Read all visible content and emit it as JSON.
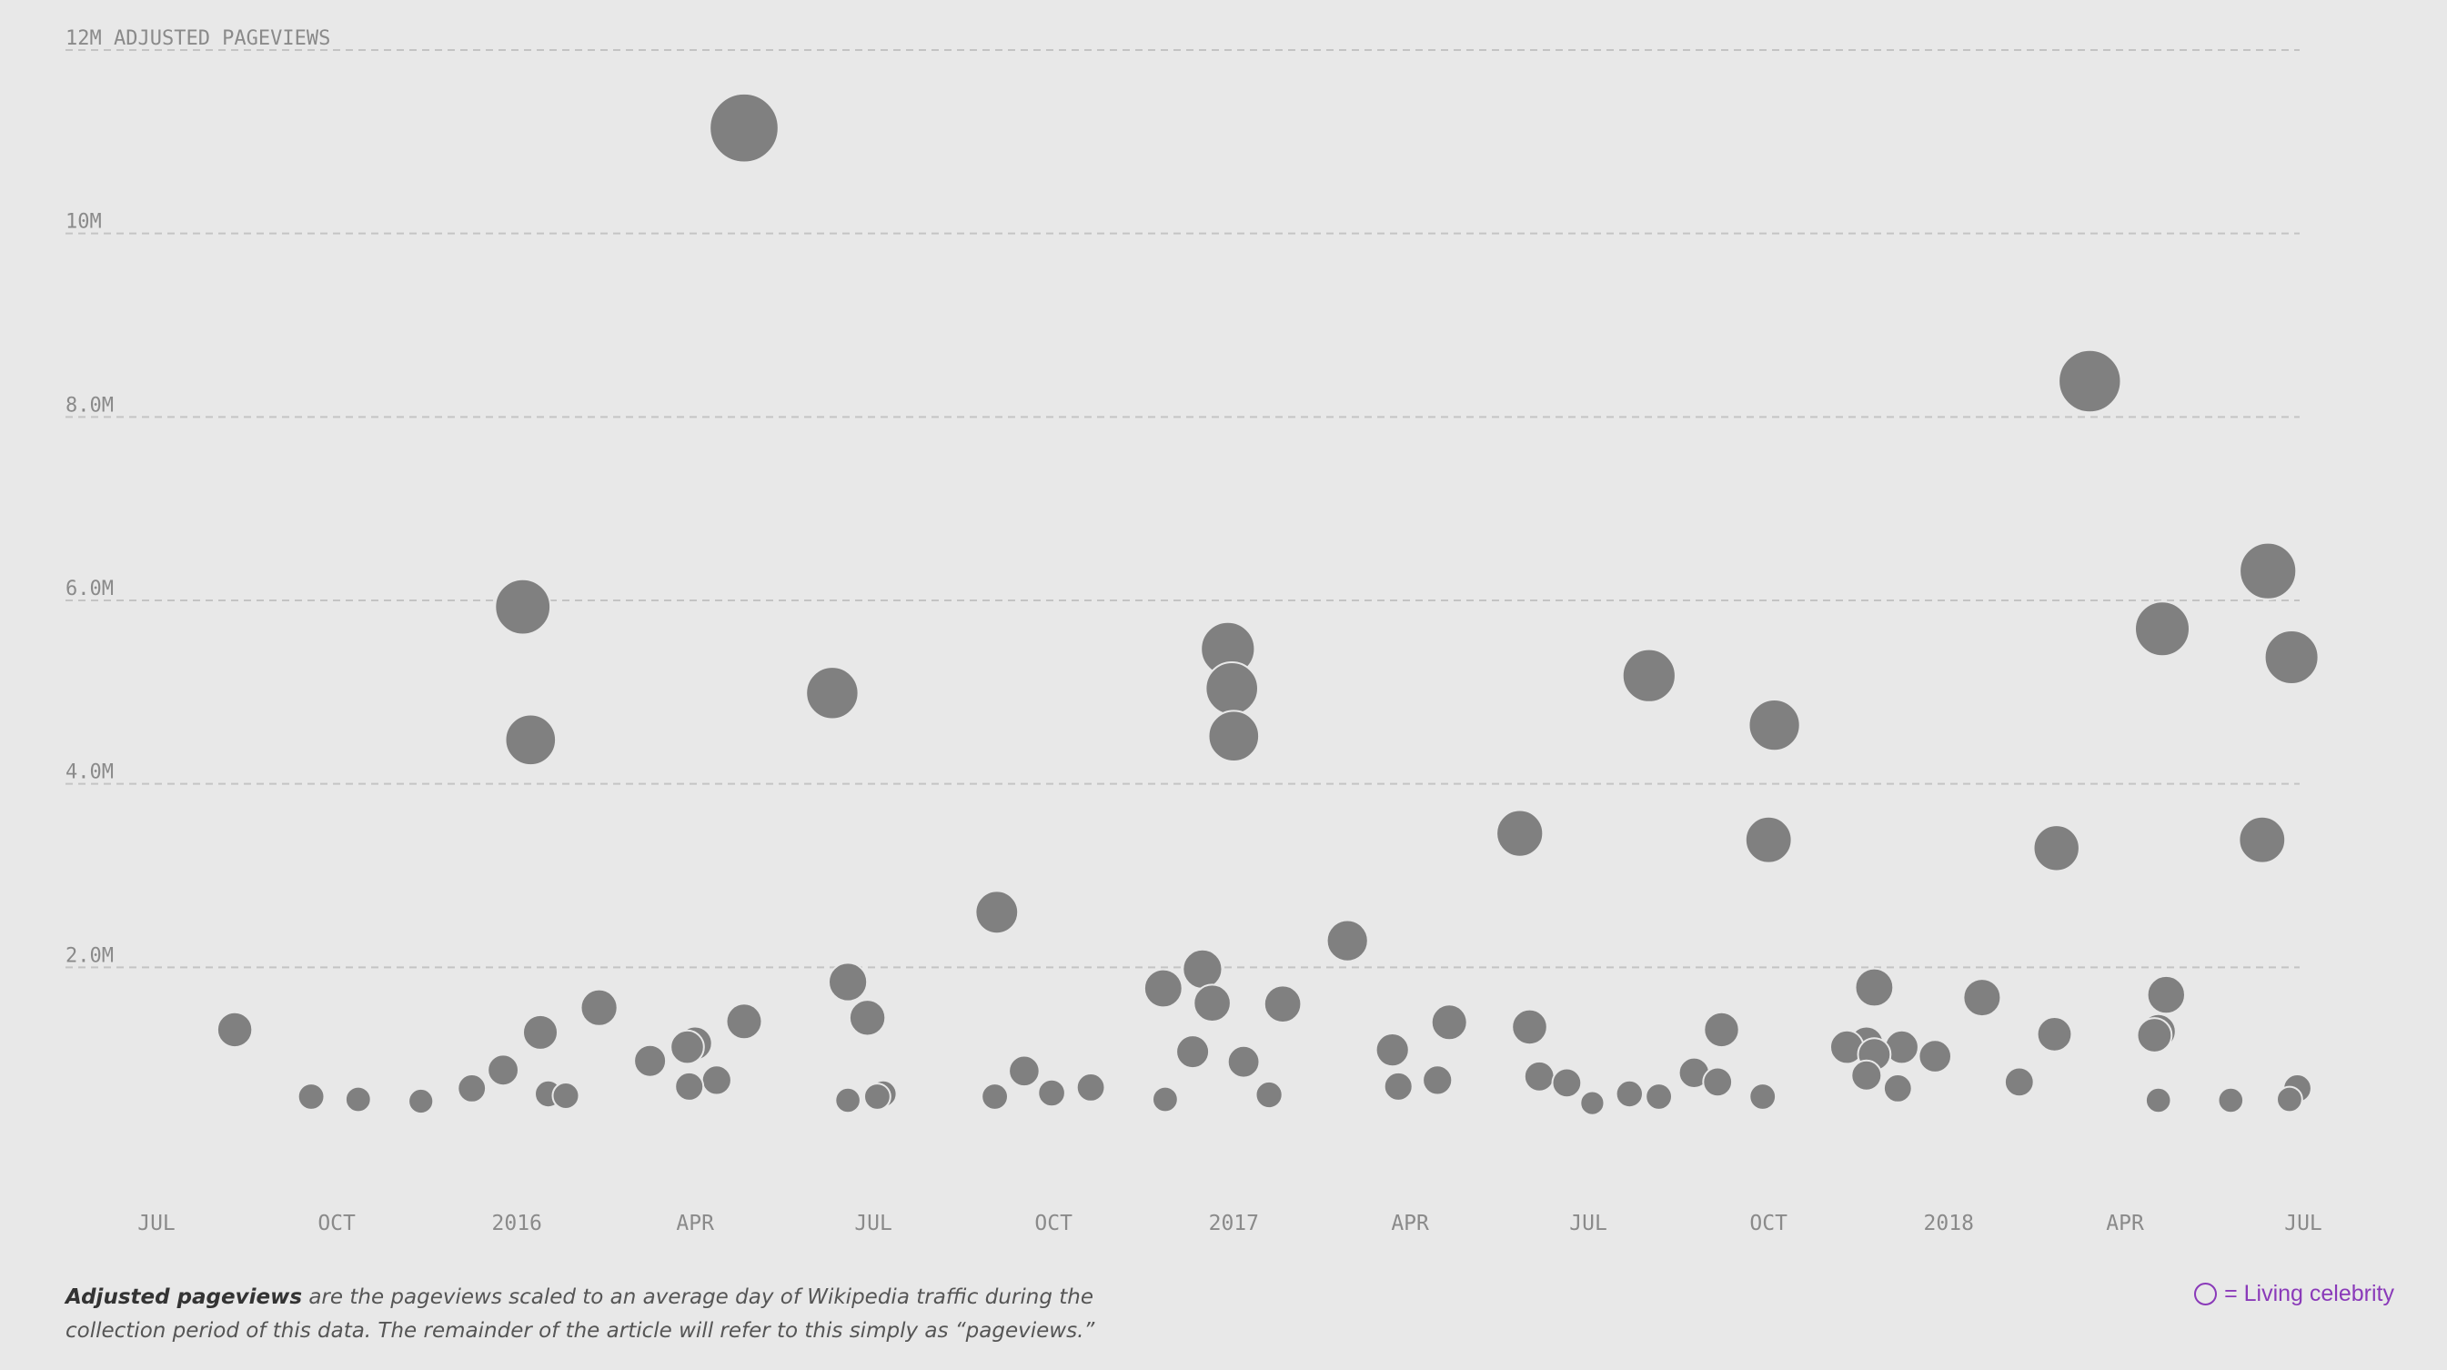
{
  "chart_data": {
    "type": "scatter",
    "x_axis": {
      "start": "2015-06-01",
      "end": "2018-06-30",
      "ticks": [
        {
          "label": "JUL",
          "date": "2015-07-01"
        },
        {
          "label": "OCT",
          "date": "2015-10-01"
        },
        {
          "label": "2016",
          "date": "2016-01-01"
        },
        {
          "label": "APR",
          "date": "2016-04-01"
        },
        {
          "label": "JUL",
          "date": "2016-07-01"
        },
        {
          "label": "OCT",
          "date": "2016-10-01"
        },
        {
          "label": "2017",
          "date": "2017-01-01"
        },
        {
          "label": "APR",
          "date": "2017-04-01"
        },
        {
          "label": "JUL",
          "date": "2017-07-01"
        },
        {
          "label": "OCT",
          "date": "2017-10-01"
        },
        {
          "label": "2018",
          "date": "2018-01-01"
        },
        {
          "label": "APR",
          "date": "2018-04-01"
        },
        {
          "label": "JUL",
          "date": "2018-07-01"
        }
      ]
    },
    "y_axis": {
      "min": 0,
      "max": 12000000,
      "ticks": [
        {
          "label": "2.0M",
          "value": 2000000
        },
        {
          "label": "4.0M",
          "value": 4000000
        },
        {
          "label": "6.0M",
          "value": 6000000
        },
        {
          "label": "8.0M",
          "value": 8000000
        },
        {
          "label": "10M",
          "value": 10000000
        },
        {
          "label": "12M ADJUSTED PAGEVIEWS",
          "value": 12000000
        }
      ]
    },
    "grid": true,
    "points": [
      {
        "date": "2015-08-10",
        "value": 1320000
      },
      {
        "date": "2015-09-18",
        "value": 590000
      },
      {
        "date": "2015-10-12",
        "value": 560000
      },
      {
        "date": "2015-11-13",
        "value": 540000
      },
      {
        "date": "2015-12-09",
        "value": 680000
      },
      {
        "date": "2015-12-25",
        "value": 880000
      },
      {
        "date": "2016-01-04",
        "value": 5930000
      },
      {
        "date": "2016-01-08",
        "value": 4480000
      },
      {
        "date": "2016-01-13",
        "value": 1290000
      },
      {
        "date": "2016-01-17",
        "value": 620000
      },
      {
        "date": "2016-01-26",
        "value": 600000
      },
      {
        "date": "2016-02-12",
        "value": 1560000
      },
      {
        "date": "2016-03-09",
        "value": 980000
      },
      {
        "date": "2016-03-28",
        "value": 1130000
      },
      {
        "date": "2016-04-01",
        "value": 1170000
      },
      {
        "date": "2016-03-29",
        "value": 700000
      },
      {
        "date": "2016-04-12",
        "value": 770000
      },
      {
        "date": "2016-04-26",
        "value": 11150000
      },
      {
        "date": "2016-04-26",
        "value": 1410000
      },
      {
        "date": "2016-06-10",
        "value": 4990000
      },
      {
        "date": "2016-06-18",
        "value": 1840000
      },
      {
        "date": "2016-06-28",
        "value": 1450000
      },
      {
        "date": "2016-06-18",
        "value": 550000
      },
      {
        "date": "2016-07-03",
        "value": 590000
      },
      {
        "date": "2016-07-06",
        "value": 620000
      },
      {
        "date": "2016-09-02",
        "value": 2600000
      },
      {
        "date": "2016-09-01",
        "value": 590000
      },
      {
        "date": "2016-09-16",
        "value": 870000
      },
      {
        "date": "2016-09-30",
        "value": 630000
      },
      {
        "date": "2016-10-20",
        "value": 690000
      },
      {
        "date": "2016-11-26",
        "value": 1770000
      },
      {
        "date": "2016-11-27",
        "value": 560000
      },
      {
        "date": "2016-12-11",
        "value": 1080000
      },
      {
        "date": "2016-12-16",
        "value": 1980000
      },
      {
        "date": "2016-12-21",
        "value": 1610000
      },
      {
        "date": "2016-12-29",
        "value": 5470000
      },
      {
        "date": "2016-12-31",
        "value": 5040000
      },
      {
        "date": "2017-01-01",
        "value": 4520000
      },
      {
        "date": "2017-01-06",
        "value": 970000
      },
      {
        "date": "2017-01-19",
        "value": 610000
      },
      {
        "date": "2017-01-26",
        "value": 1600000
      },
      {
        "date": "2017-02-28",
        "value": 2290000
      },
      {
        "date": "2017-03-23",
        "value": 1100000
      },
      {
        "date": "2017-03-26",
        "value": 700000
      },
      {
        "date": "2017-04-15",
        "value": 770000
      },
      {
        "date": "2017-04-21",
        "value": 1400000
      },
      {
        "date": "2017-05-27",
        "value": 3460000
      },
      {
        "date": "2017-06-01",
        "value": 1350000
      },
      {
        "date": "2017-06-06",
        "value": 810000
      },
      {
        "date": "2017-06-20",
        "value": 740000
      },
      {
        "date": "2017-07-03",
        "value": 520000
      },
      {
        "date": "2017-07-22",
        "value": 620000
      },
      {
        "date": "2017-08-06",
        "value": 590000
      },
      {
        "date": "2017-08-01",
        "value": 5180000
      },
      {
        "date": "2017-08-24",
        "value": 850000
      },
      {
        "date": "2017-09-05",
        "value": 750000
      },
      {
        "date": "2017-09-07",
        "value": 1320000
      },
      {
        "date": "2017-09-28",
        "value": 590000
      },
      {
        "date": "2017-10-01",
        "value": 3390000
      },
      {
        "date": "2017-10-04",
        "value": 4640000
      },
      {
        "date": "2017-11-10",
        "value": 1130000
      },
      {
        "date": "2017-11-20",
        "value": 1170000
      },
      {
        "date": "2017-11-24",
        "value": 1780000
      },
      {
        "date": "2017-11-24",
        "value": 1050000
      },
      {
        "date": "2017-11-20",
        "value": 820000
      },
      {
        "date": "2017-12-06",
        "value": 680000
      },
      {
        "date": "2017-12-08",
        "value": 1130000
      },
      {
        "date": "2017-12-25",
        "value": 1030000
      },
      {
        "date": "2018-01-18",
        "value": 1670000
      },
      {
        "date": "2018-02-06",
        "value": 750000
      },
      {
        "date": "2018-02-24",
        "value": 1270000
      },
      {
        "date": "2018-02-25",
        "value": 3300000
      },
      {
        "date": "2018-03-14",
        "value": 8390000
      },
      {
        "date": "2018-04-16",
        "value": 1260000
      },
      {
        "date": "2018-04-18",
        "value": 1300000
      },
      {
        "date": "2018-04-20",
        "value": 5690000
      },
      {
        "date": "2018-04-22",
        "value": 1700000
      },
      {
        "date": "2018-04-18",
        "value": 550000
      },
      {
        "date": "2018-05-25",
        "value": 550000
      },
      {
        "date": "2018-06-10",
        "value": 3390000
      },
      {
        "date": "2018-06-13",
        "value": 6320000
      },
      {
        "date": "2018-06-25",
        "value": 5380000
      },
      {
        "date": "2018-06-24",
        "value": 560000
      },
      {
        "date": "2018-06-28",
        "value": 680000
      }
    ]
  },
  "footnote": {
    "bold": "Adjusted pageviews",
    "text": " are the pageviews scaled to an average day of Wikipedia traffic during the collection period of this data. The remainder of the article will refer to this simply as “pageviews.”"
  },
  "legend": {
    "label": "= Living celebrity",
    "color": "#8a3ab9"
  }
}
